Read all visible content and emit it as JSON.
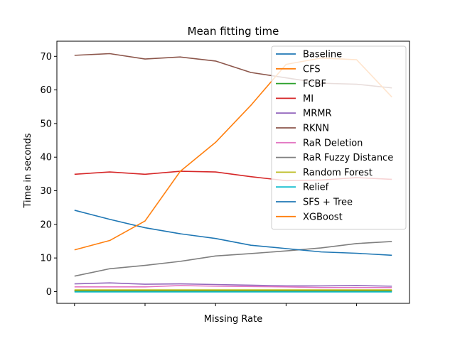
{
  "chart_data": {
    "type": "line",
    "title": "Mean fitting time",
    "xlabel": "Missing Rate",
    "ylabel": "Time in seconds",
    "ylim": [
      -3.5,
      74.5
    ],
    "xlim": [
      -0.5,
      9.5
    ],
    "yticks": [
      0,
      10,
      20,
      30,
      40,
      50,
      60,
      70
    ],
    "xticks": [
      0,
      2,
      4,
      6,
      8
    ],
    "grid": false,
    "legend_position": "top-right",
    "x": [
      0,
      1,
      2,
      3,
      4,
      5,
      6,
      7,
      8,
      9
    ],
    "series": [
      {
        "name": "Baseline",
        "color": "#1f77b4",
        "values": [
          0.3,
          0.3,
          0.3,
          0.3,
          0.3,
          0.3,
          0.3,
          0.3,
          0.3,
          0.3
        ]
      },
      {
        "name": "CFS",
        "color": "#ff7f0e",
        "values": [
          0.4,
          0.4,
          0.4,
          0.4,
          0.4,
          0.4,
          0.4,
          0.4,
          0.4,
          0.4
        ]
      },
      {
        "name": "FCBF",
        "color": "#2ca02c",
        "values": [
          0.1,
          0.1,
          0.1,
          0.1,
          0.1,
          0.1,
          0.1,
          0.1,
          0.1,
          0.1
        ]
      },
      {
        "name": "MI",
        "color": "#d62728",
        "values": [
          34.9,
          35.6,
          34.9,
          35.8,
          35.6,
          34.2,
          33.0,
          33.2,
          33.9,
          33.4
        ]
      },
      {
        "name": "MRMR",
        "color": "#9467bd",
        "values": [
          2.3,
          2.6,
          2.2,
          2.3,
          2.1,
          1.9,
          1.7,
          1.7,
          1.8,
          1.6
        ]
      },
      {
        "name": "RKNN",
        "color": "#8c564b",
        "values": [
          70.3,
          70.8,
          69.2,
          69.8,
          68.6,
          65.2,
          63.6,
          62.0,
          61.7,
          60.6
        ]
      },
      {
        "name": "RaR Deletion",
        "color": "#e377c2",
        "values": [
          1.4,
          1.4,
          1.4,
          1.8,
          1.6,
          1.5,
          1.4,
          1.2,
          1.2,
          1.2
        ]
      },
      {
        "name": "RaR Fuzzy Distance",
        "color": "#7f7f7f",
        "values": [
          4.6,
          6.8,
          7.8,
          9.0,
          10.6,
          11.3,
          12.1,
          13.0,
          14.3,
          14.9
        ]
      },
      {
        "name": "Random Forest",
        "color": "#bcbd22",
        "values": [
          0.5,
          0.5,
          0.5,
          0.5,
          0.5,
          0.5,
          0.5,
          0.5,
          0.5,
          0.5
        ]
      },
      {
        "name": "Relief",
        "color": "#17becf",
        "values": [
          -0.1,
          -0.1,
          -0.1,
          -0.1,
          -0.1,
          -0.1,
          -0.1,
          -0.1,
          -0.1,
          -0.1
        ]
      },
      {
        "name": "SFS + Tree",
        "color": "#1f77b4",
        "values": [
          24.2,
          21.5,
          19.0,
          17.2,
          15.8,
          13.8,
          12.8,
          11.8,
          11.4,
          10.8
        ]
      },
      {
        "name": "XGBoost",
        "color": "#ff7f0e",
        "values": [
          12.4,
          15.2,
          21.0,
          35.8,
          44.4,
          55.4,
          67.6,
          69.5,
          69.0,
          57.9
        ]
      }
    ]
  }
}
